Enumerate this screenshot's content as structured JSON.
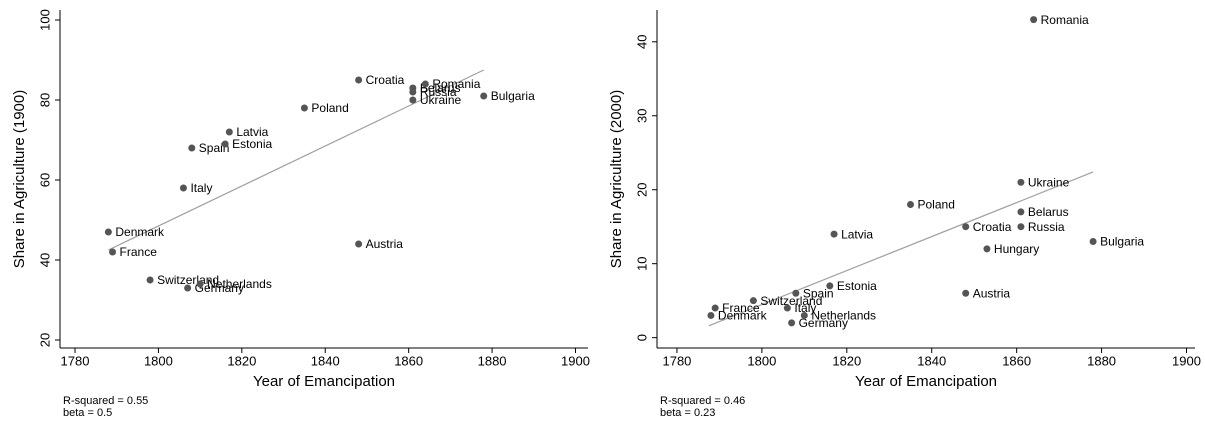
{
  "chart_data": [
    {
      "type": "scatter",
      "xlabel": "Year of Emancipation",
      "ylabel": "Share in Agriculture (1900)",
      "labels": [
        "Denmark",
        "France",
        "Switzerland",
        "Germany",
        "Netherlands",
        "Italy",
        "Spain",
        "Estonia",
        "Latvia",
        "Poland",
        "Croatia",
        "Austria",
        "Belarus",
        "Russia",
        "Ukraine",
        "Romania",
        "Bulgaria"
      ],
      "x": [
        1788,
        1789,
        1798,
        1807,
        1810,
        1806,
        1808,
        1816,
        1817,
        1835,
        1848,
        1848,
        1861,
        1861,
        1861,
        1864,
        1878
      ],
      "y": [
        47,
        42,
        35,
        33,
        34,
        58,
        68,
        69,
        72,
        78,
        85,
        44,
        83,
        82,
        80,
        84,
        81
      ],
      "color": "#555555",
      "fit": {
        "x": [
          1788,
          1878
        ],
        "y": [
          42.5,
          87.5
        ],
        "color": "#a0a0a0"
      },
      "xlim": [
        1776.4,
        1903
      ],
      "ylim": [
        18,
        102.5
      ],
      "xticks": [
        1780,
        1800,
        1820,
        1840,
        1860,
        1880,
        1900
      ],
      "yticks": [
        20,
        40,
        60,
        80,
        100
      ],
      "annotations": [
        "R-squared = 0.55",
        "beta = 0.5"
      ]
    },
    {
      "type": "scatter",
      "xlabel": "Year of Emancipation",
      "ylabel": "Share in Agriculture (2000)",
      "labels": [
        "Denmark",
        "France",
        "Switzerland",
        "Germany",
        "Netherlands",
        "Italy",
        "Spain",
        "Estonia",
        "Latvia",
        "Poland",
        "Croatia",
        "Austria",
        "Hungary",
        "Belarus",
        "Russia",
        "Ukraine",
        "Romania",
        "Bulgaria"
      ],
      "x": [
        1788,
        1789,
        1798,
        1807,
        1810,
        1806,
        1808,
        1816,
        1817,
        1835,
        1848,
        1848,
        1853,
        1861,
        1861,
        1861,
        1864,
        1878
      ],
      "y": [
        3,
        4,
        5,
        2,
        3,
        4,
        6,
        7,
        14,
        18,
        15,
        6,
        12,
        17,
        15,
        21,
        43,
        13
      ],
      "color": "#555555",
      "fit": {
        "x": [
          1787.5,
          1878
        ],
        "y": [
          1.6,
          22.4
        ],
        "color": "#a0a0a0"
      },
      "xlim": [
        1775.3,
        1902
      ],
      "ylim": [
        -1.4,
        44.3
      ],
      "xticks": [
        1780,
        1800,
        1820,
        1840,
        1860,
        1880,
        1900
      ],
      "yticks": [
        0,
        10,
        20,
        30,
        40
      ],
      "annotations": [
        "R-squared = 0.46",
        "beta = 0.23"
      ]
    }
  ]
}
